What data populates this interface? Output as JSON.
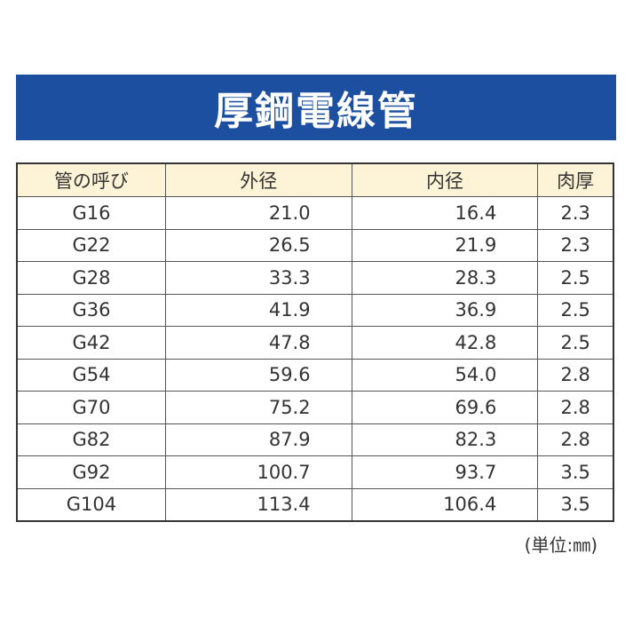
{
  "header": {
    "title": "厚鋼電線管"
  },
  "table": {
    "columns": [
      "管の呼び",
      "外径",
      "内径",
      "肉厚"
    ],
    "rows": [
      [
        "G16",
        "21.0",
        "16.4",
        "2.3"
      ],
      [
        "G22",
        "26.5",
        "21.9",
        "2.3"
      ],
      [
        "G28",
        "33.3",
        "28.3",
        "2.5"
      ],
      [
        "G36",
        "41.9",
        "36.9",
        "2.5"
      ],
      [
        "G42",
        "47.8",
        "42.8",
        "2.5"
      ],
      [
        "G54",
        "59.6",
        "54.0",
        "2.8"
      ],
      [
        "G70",
        "75.2",
        "69.6",
        "2.8"
      ],
      [
        "G82",
        "87.9",
        "82.3",
        "2.8"
      ],
      [
        "G92",
        "100.7",
        "93.7",
        "3.5"
      ],
      [
        "G104",
        "113.4",
        "106.4",
        "3.5"
      ]
    ]
  },
  "footer": {
    "unit_note": "(単位:㎜)"
  }
}
